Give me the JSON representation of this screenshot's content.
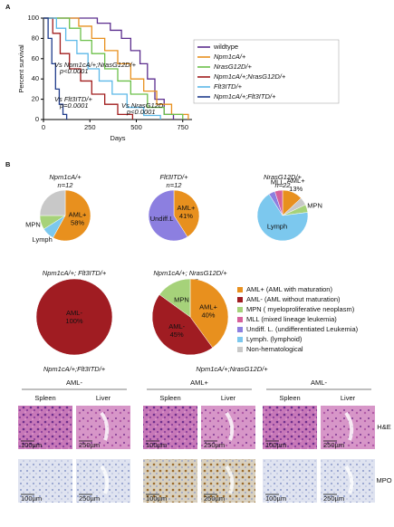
{
  "panel_labels": [
    "A",
    "B"
  ],
  "chart_data": [
    {
      "type": "line",
      "x_label": "Days",
      "y_label": "Percent survival",
      "xlim": [
        0,
        800
      ],
      "ylim": [
        0,
        100
      ],
      "xticks": [
        0,
        250,
        500,
        750
      ],
      "yticks": [
        0,
        20,
        40,
        60,
        80,
        100
      ],
      "annotations": [
        "Vs Npm1cA/+;NrasG12D/+",
        "p<0.0001",
        "Vs Flt3ITD/+",
        "p=0.0001",
        "Vs NrasG12D",
        "p<0.0001"
      ],
      "series": [
        {
          "name": "wildtype",
          "color": "#5b2d8e",
          "x": [
            0,
            290,
            290,
            360,
            360,
            420,
            420,
            470,
            470,
            520,
            520,
            560,
            560,
            600,
            600,
            650,
            650,
            700,
            700
          ],
          "values": [
            100,
            100,
            95,
            95,
            88,
            88,
            80,
            80,
            68,
            68,
            55,
            55,
            40,
            40,
            20,
            20,
            5,
            5,
            0
          ]
        },
        {
          "name": "Npm1cA/+",
          "color": "#e8901e",
          "x": [
            0,
            190,
            190,
            260,
            260,
            330,
            330,
            400,
            400,
            470,
            470,
            540,
            540,
            610,
            610,
            690,
            690,
            780,
            780
          ],
          "values": [
            100,
            100,
            92,
            92,
            80,
            80,
            68,
            68,
            55,
            55,
            40,
            40,
            28,
            28,
            15,
            15,
            5,
            5,
            0
          ]
        },
        {
          "name": "NrasG12D/+",
          "color": "#6cc04a",
          "x": [
            0,
            140,
            140,
            200,
            200,
            260,
            260,
            330,
            330,
            400,
            400,
            470,
            470,
            560,
            560,
            650,
            650,
            750,
            750
          ],
          "values": [
            100,
            100,
            90,
            90,
            78,
            78,
            65,
            65,
            50,
            50,
            38,
            38,
            25,
            25,
            12,
            12,
            5,
            5,
            0
          ]
        },
        {
          "name": "Npm1cA/+;NrasG12D/+",
          "color": "#a01c1c",
          "x": [
            0,
            50,
            50,
            90,
            90,
            140,
            140,
            200,
            200,
            260,
            260,
            330,
            330,
            400,
            400,
            480,
            480
          ],
          "values": [
            100,
            100,
            85,
            85,
            65,
            65,
            50,
            50,
            38,
            38,
            25,
            25,
            15,
            15,
            5,
            5,
            0
          ]
        },
        {
          "name": "Flt3ITD/+",
          "color": "#5bb8e8",
          "x": [
            0,
            70,
            70,
            120,
            120,
            180,
            180,
            240,
            240,
            300,
            300,
            370,
            370,
            450,
            450,
            540,
            540,
            630,
            630
          ],
          "values": [
            100,
            100,
            90,
            90,
            78,
            78,
            65,
            65,
            50,
            50,
            38,
            38,
            25,
            25,
            12,
            12,
            4,
            4,
            0
          ]
        },
        {
          "name": "Npm1cA/+;Flt3ITD/+",
          "color": "#1f3c8c",
          "x": [
            0,
            25,
            25,
            45,
            45,
            65,
            65,
            85,
            85,
            105,
            105,
            125,
            125
          ],
          "values": [
            100,
            100,
            80,
            80,
            55,
            55,
            30,
            30,
            15,
            15,
            5,
            5,
            0
          ]
        }
      ]
    },
    {
      "type": "pie",
      "title": "Npm1cA/+",
      "subtitle": "n=12",
      "categories": [
        "AML+",
        "Lymph",
        "MPN",
        null
      ],
      "values": [
        58,
        8,
        9,
        25
      ],
      "value_labels": [
        "58%",
        null,
        null,
        null
      ],
      "colors": [
        "#e8901e",
        "#7cc8ee",
        "#a6d27a",
        "#c8c8c8"
      ]
    },
    {
      "type": "pie",
      "title": "Flt3ITD/+",
      "subtitle": "n=12",
      "categories": [
        "AML+",
        "Undiff.L"
      ],
      "values": [
        41,
        59
      ],
      "value_labels": [
        "41%",
        null
      ],
      "colors": [
        "#e8901e",
        "#8c7fe0"
      ]
    },
    {
      "type": "pie",
      "title": "NrasG12D/+",
      "subtitle": "n=22",
      "categories": [
        "AML+",
        null,
        "MPN",
        "Lymph",
        null,
        "MLL"
      ],
      "values": [
        13,
        5,
        5,
        68,
        4,
        5
      ],
      "value_labels": [
        "13%",
        null,
        null,
        null,
        null,
        null
      ],
      "colors": [
        "#e8901e",
        "#c8c8c8",
        "#a6d27a",
        "#7cc8ee",
        "#8c7fe0",
        "#d6609a"
      ]
    },
    {
      "type": "pie",
      "title": "Npm1cA/+; Flt3ITD/+",
      "subtitle": "n=11",
      "categories": [
        "AML-"
      ],
      "values": [
        100
      ],
      "value_labels": [
        "100%"
      ],
      "colors": [
        "#a01c22"
      ]
    },
    {
      "type": "pie",
      "title": "Npm1cA/+; NrasG12D/+",
      "subtitle": "n=27",
      "categories": [
        "AML+",
        "AML-",
        "MPN"
      ],
      "values": [
        40,
        45,
        15
      ],
      "value_labels": [
        "40%",
        "45%",
        null
      ],
      "colors": [
        "#e8901e",
        "#a01c22",
        "#a6d27a"
      ]
    }
  ],
  "pie_legend": [
    {
      "name": "AML+ (AML with maturation)",
      "color": "#e8901e"
    },
    {
      "name": "AML- (AML without maturation)",
      "color": "#a01c22"
    },
    {
      "name": "MPN ( myeloproliferative neoplasm)",
      "color": "#a6d27a"
    },
    {
      "name": "MLL (mixed lineage leukemia)",
      "color": "#d6609a"
    },
    {
      "name": "Undiff. L. (undifferentiated Leukemia)",
      "color": "#8c7fe0"
    },
    {
      "name": "Lymph. (lymphoid)",
      "color": "#7cc8ee"
    },
    {
      "name": "Non-hematological",
      "color": "#c8c8c8"
    }
  ],
  "histology": {
    "row_labels": [
      "H&E",
      "MPO"
    ],
    "groups": [
      {
        "title": "Npm1cA/+;Flt3ITD/+",
        "subgroups": [
          {
            "label": "AML-",
            "tissues": [
              "Spleen",
              "Liver"
            ],
            "scale_bars": [
              [
                "100µm",
                "250µm"
              ],
              [
                "100µm",
                "250µm"
              ]
            ]
          }
        ]
      },
      {
        "title": "Npm1cA/+;NrasG12D/+",
        "subgroups": [
          {
            "label": "AML+",
            "tissues": [
              "Spleen",
              "Liver"
            ],
            "scale_bars": [
              [
                "100µm",
                "250µm"
              ],
              [
                "100µm",
                "250µm"
              ]
            ]
          },
          {
            "label": "AML-",
            "tissues": [
              "Spleen",
              "Liver"
            ],
            "scale_bars": [
              [
                "100µm",
                "250µm"
              ],
              [
                "100µm",
                "250µm"
              ]
            ]
          }
        ]
      }
    ]
  }
}
